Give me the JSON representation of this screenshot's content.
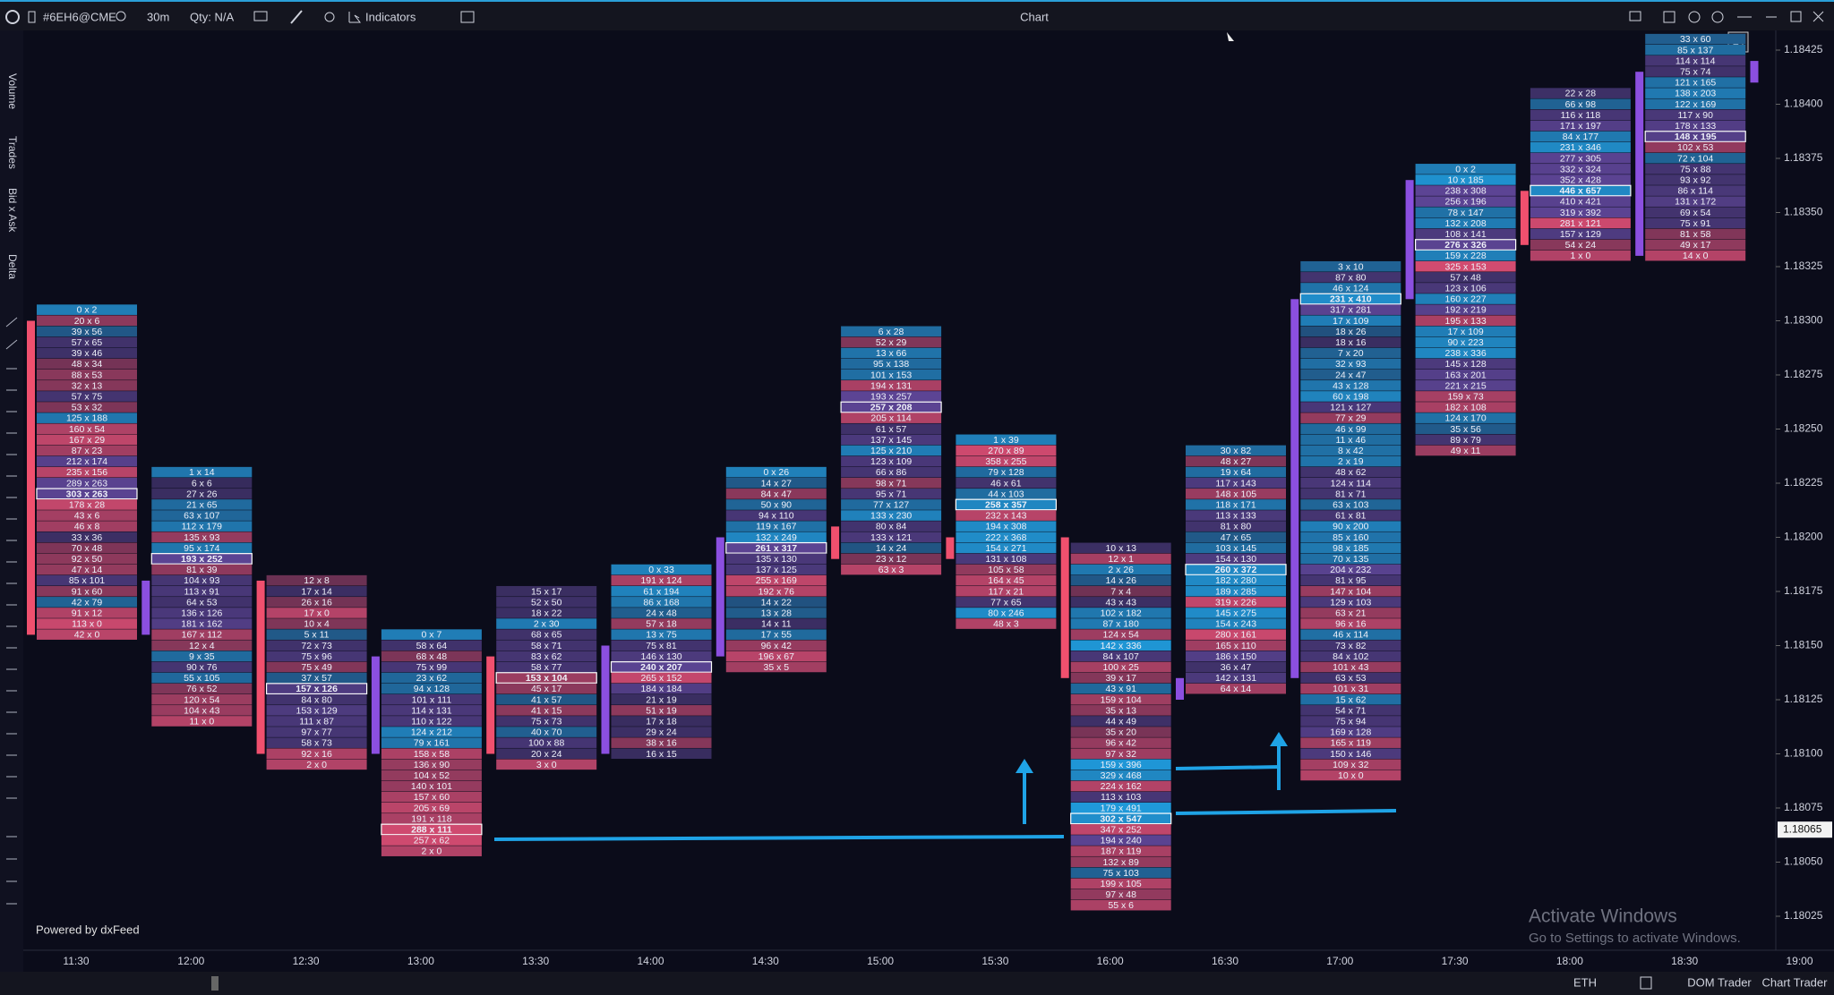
{
  "toolbar": {
    "symbol": "#6EH6@CME",
    "timeframe": "30m",
    "quantity": "Qty: N/A",
    "indicators": "Indicators",
    "window_title": "Chart"
  },
  "sidebar": {
    "labels": [
      "Volume",
      "Trades",
      "Bid x Ask",
      "Delta"
    ]
  },
  "chart_data": {
    "type": "footprint",
    "tick_size": 5e-05,
    "ylim": [
      1.18025,
      1.18425
    ],
    "yticks": [
      1.18425,
      {
        "value": 1.184,
        "label": "1.18400"
      },
      1.18375,
      {
        "value": 1.1835,
        "label": "1.18350"
      },
      1.18325,
      {
        "value": 1.183,
        "label": "1.18300"
      },
      1.18275,
      {
        "value": 1.1825,
        "label": "1.18250"
      },
      1.18225,
      {
        "value": 1.182,
        "label": "1.18200"
      },
      1.18175,
      {
        "value": 1.1815,
        "label": "1.18150"
      },
      1.18125,
      {
        "value": 1.181,
        "label": "1.18100"
      },
      1.18075,
      {
        "value": 1.1805,
        "label": "1.18050"
      },
      1.18025
    ],
    "last_price": 1.18065,
    "categories": [
      "11:30",
      "12:00",
      "12:30",
      "13:00",
      "13:30",
      "14:00",
      "14:30",
      "15:00",
      "15:30",
      "16:00",
      "16:30",
      "17:00",
      "17:30",
      "18:00",
      "18:30",
      "19:00"
    ],
    "up_color": "#8b4fe0",
    "down_color": "#f0506e",
    "columns": [
      {
        "high": 1.18305,
        "open": 1.183,
        "close": 1.18155,
        "cells": [
          "0 x 2",
          "20 x 6",
          "39 x 56",
          "57 x 65",
          "39 x 46",
          "48 x 34",
          "88 x 53",
          "32 x 13",
          "57 x 75",
          "53 x 32",
          "125 x 188",
          "160 x 54",
          "167 x 29",
          "87 x 23",
          "212 x 174",
          "235 x 156",
          "289 x 263",
          "303 x 263",
          "178 x 28",
          "43 x 6",
          "46 x 8",
          "33 x 36",
          "70 x 48",
          "92 x 50",
          "47 x 14",
          "85 x 101",
          "91 x 60",
          "42 x 79",
          "91 x 12",
          "113 x 0",
          "42 x 0"
        ]
      },
      {
        "high": 1.1823,
        "open": 1.18155,
        "close": 1.1818,
        "cells": [
          "1 x 14",
          "6 x 6",
          "27 x 26",
          "21 x 65",
          "63 x 107",
          "112 x 179",
          "135 x 93",
          "95 x 174",
          "193 x 252",
          "81 x 39",
          "104 x 93",
          "113 x 91",
          "64 x 53",
          "136 x 126",
          "181 x 162",
          "167 x 112",
          "12 x 4",
          "9 x 35",
          "90 x 76",
          "55 x 105",
          "76 x 52",
          "120 x 54",
          "104 x 43",
          "11 x 0"
        ]
      },
      {
        "high": 1.1818,
        "open": 1.1818,
        "close": 1.181,
        "cells": [
          "12 x 8",
          "17 x 14",
          "26 x 16",
          "17 x 0",
          "10 x 4",
          "5 x 11",
          "72 x 73",
          "75 x 96",
          "75 x 49",
          "37 x 57",
          "157 x 126",
          "84 x 80",
          "153 x 129",
          "111 x 87",
          "97 x 77",
          "58 x 73",
          "92 x 16",
          "2 x 0"
        ]
      },
      {
        "high": 1.18155,
        "open": 1.181,
        "close": 1.18145,
        "cells": [
          "0 x 7",
          "58 x 64",
          "68 x 48",
          "75 x 99",
          "23 x 62",
          "94 x 128",
          "101 x 111",
          "114 x 131",
          "110 x 122",
          "124 x 212",
          "79 x 161",
          "158 x 58",
          "136 x 90",
          "104 x 52",
          "140 x 101",
          "157 x 60",
          "205 x 69",
          "191 x 118",
          "288 x 111",
          "257 x 62",
          "2 x 0"
        ]
      },
      {
        "high": 1.18175,
        "open": 1.18145,
        "close": 1.181,
        "cells": [
          "15 x 17",
          "52 x 50",
          "18 x 22",
          "2 x 30",
          "68 x 65",
          "58 x 71",
          "83 x 62",
          "58 x 77",
          "153 x 104",
          "45 x 17",
          "41 x 57",
          "41 x 15",
          "75 x 73",
          "40 x 70",
          "100 x 88",
          "20 x 24",
          "3 x 0"
        ]
      },
      {
        "high": 1.18185,
        "open": 1.181,
        "close": 1.1815,
        "cells": [
          "0 x 33",
          "191 x 124",
          "61 x 194",
          "86 x 168",
          "24 x 48",
          "57 x 18",
          "13 x 75",
          "75 x 81",
          "146 x 130",
          "240 x 207",
          "265 x 152",
          "184 x 184",
          "21 x 19",
          "51 x 19",
          "17 x 18",
          "29 x 24",
          "38 x 16",
          "16 x 15"
        ]
      },
      {
        "high": 1.1823,
        "open": 1.18145,
        "close": 1.182,
        "cells": [
          "0 x 26",
          "14 x 27",
          "84 x 47",
          "50 x 90",
          "94 x 110",
          "119 x 167",
          "132 x 249",
          "261 x 317",
          "135 x 130",
          "137 x 125",
          "255 x 169",
          "192 x 76",
          "14 x 22",
          "13 x 28",
          "14 x 11",
          "17 x 55",
          "96 x 42",
          "196 x 67",
          "35 x 5"
        ]
      },
      {
        "high": 1.18295,
        "open": 1.18205,
        "close": 1.1819,
        "cells": [
          "6 x 28",
          "52 x 29",
          "13 x 66",
          "95 x 138",
          "101 x 153",
          "194 x 131",
          "193 x 257",
          "257 x 208",
          "205 x 114",
          "61 x 57",
          "137 x 145",
          "125 x 210",
          "123 x 109",
          "66 x 86",
          "98 x 71",
          "95 x 71",
          "77 x 127",
          "133 x 230",
          "80 x 84",
          "133 x 121",
          "14 x 24",
          "23 x 12",
          "63 x 3"
        ]
      },
      {
        "high": 1.18245,
        "open": 1.182,
        "close": 1.1819,
        "cells": [
          "1 x 39",
          "270 x 89",
          "358 x 255",
          "79 x 128",
          "46 x 61",
          "44 x 103",
          "258 x 357",
          "232 x 143",
          "194 x 308",
          "222 x 368",
          "154 x 271",
          "131 x 108",
          "105 x 58",
          "164 x 45",
          "117 x 21",
          "77 x 65",
          "80 x 246",
          "48 x 3"
        ]
      },
      {
        "high": 1.18195,
        "open": 1.182,
        "close": 1.18135,
        "cells": [
          "10 x 13",
          "12 x 1",
          "2 x 26",
          "14 x 26",
          "7 x 4",
          "43 x 43",
          "102 x 182",
          "87 x 180",
          "124 x 54",
          "142 x 336",
          "84 x 107",
          "100 x 25",
          "39 x 17",
          "43 x 91",
          "159 x 104",
          "35 x 13",
          "44 x 49",
          "35 x 20",
          "96 x 42",
          "97 x 32",
          "159 x 396",
          "329 x 468",
          "224 x 162",
          "113 x 103",
          "179 x 491",
          "302 x 547",
          "347 x 252",
          "194 x 240",
          "187 x 119",
          "132 x 89",
          "75 x 103",
          "199 x 105",
          "97 x 48",
          "55 x 6"
        ]
      },
      {
        "high": 1.1824,
        "open": 1.18125,
        "close": 1.18135,
        "cells": [
          "30 x 82",
          "48 x 27",
          "19 x 64",
          "117 x 143",
          "148 x 105",
          "118 x 171",
          "113 x 133",
          "81 x 80",
          "47 x 65",
          "103 x 145",
          "154 x 130",
          "260 x 372",
          "182 x 280",
          "189 x 285",
          "319 x 226",
          "145 x 275",
          "154 x 243",
          "280 x 161",
          "165 x 110",
          "186 x 150",
          "36 x 47",
          "142 x 131",
          "64 x 14"
        ]
      },
      {
        "high": 1.18325,
        "open": 1.18135,
        "close": 1.1831,
        "cells": [
          "3 x 10",
          "87 x 80",
          "46 x 124",
          "231 x 410",
          "317 x 281",
          "17 x 109",
          "18 x 26",
          "18 x 16",
          "7 x 20",
          "32 x 93",
          "24 x 47",
          "43 x 128",
          "60 x 198",
          "121 x 127",
          "77 x 29",
          "46 x 99",
          "11 x 46",
          "8 x 42",
          "2 x 19",
          "48 x 62",
          "124 x 114",
          "81 x 71",
          "63 x 103",
          "61 x 81",
          "90 x 200",
          "85 x 160",
          "98 x 185",
          "70 x 135",
          "204 x 232",
          "81 x 95",
          "147 x 104",
          "129 x 103",
          "63 x 21",
          "96 x 16",
          "46 x 114",
          "73 x 82",
          "84 x 102",
          "101 x 43",
          "63 x 53",
          "101 x 31",
          "15 x 62",
          "54 x 71",
          "75 x 94",
          "169 x 128",
          "165 x 119",
          "150 x 146",
          "109 x 32",
          "10 x 0"
        ]
      },
      {
        "high": 1.1837,
        "open": 1.1831,
        "close": 1.18365,
        "cells": [
          "0 x 2",
          "10 x 185",
          "238 x 308",
          "256 x 196",
          "78 x 147",
          "132 x 208",
          "108 x 141",
          "276 x 326",
          "159 x 228",
          "325 x 153",
          "57 x 48",
          "123 x 106",
          "160 x 227",
          "192 x 219",
          "195 x 133",
          "17 x 109",
          "90 x 223",
          "238 x 336",
          "145 x 128",
          "163 x 201",
          "221 x 215",
          "159 x 73",
          "182 x 108",
          "124 x 170",
          "35 x 56",
          "89 x 79",
          "49 x 11"
        ]
      },
      {
        "high": 1.18405,
        "open": 1.1836,
        "close": 1.18335,
        "cells": [
          "22 x 28",
          "66 x 98",
          "116 x 118",
          "171 x 197",
          "84 x 177",
          "231 x 346",
          "277 x 305",
          "332 x 324",
          "352 x 428",
          "446 x 657",
          "410 x 421",
          "319 x 392",
          "281 x 121",
          "157 x 129",
          "54 x 24",
          "1 x 0"
        ]
      },
      {
        "high": 1.1843,
        "open": 1.1833,
        "close": 1.18415,
        "cells": [
          "33 x 60",
          "85 x 137",
          "114 x 114",
          "75 x 74",
          "121 x 165",
          "138 x 203",
          "122 x 169",
          "117 x 90",
          "178 x 133",
          "148 x 195",
          "102 x 53",
          "72 x 104",
          "75 x 88",
          "93 x 92",
          "86 x 114",
          "131 x 172",
          "69 x 54",
          "75 x 91",
          "81 x 58",
          "49 x 17",
          "14 x 0"
        ]
      },
      {
        "high": 1.1842,
        "open": 1.1841,
        "close": 1.1842,
        "cells": []
      }
    ]
  },
  "footer": {
    "powered_by": "Powered by dxFeed",
    "session": "ETH",
    "dom_trader": "DOM Trader",
    "chart_trader": "Chart Trader"
  },
  "watermark": {
    "title": "Activate Windows",
    "subtitle": "Go to Settings to activate Windows."
  }
}
